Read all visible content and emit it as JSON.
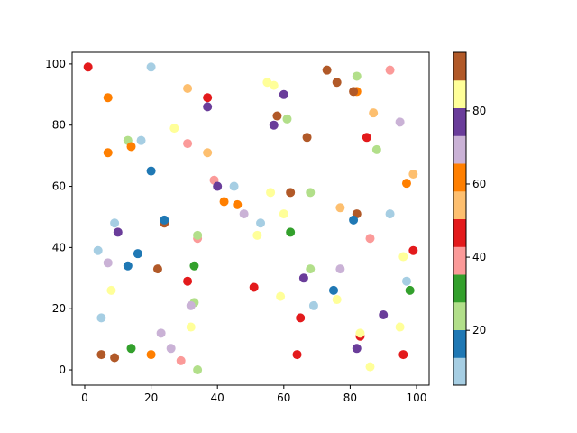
{
  "chart_data": {
    "type": "scatter",
    "title": "",
    "xlabel": "",
    "ylabel": "",
    "xlim": [
      -3.8,
      103.8
    ],
    "ylim": [
      -5,
      103.8
    ],
    "xticks": [
      "0",
      "20",
      "40",
      "60",
      "80",
      "100"
    ],
    "yticks": [
      "0",
      "20",
      "40",
      "60",
      "80",
      "100"
    ],
    "grid": false,
    "colormap": "Paired",
    "colormap_colors": [
      "#a6cee3",
      "#1f78b4",
      "#b2df8a",
      "#33a02c",
      "#fb9a99",
      "#e31a1c",
      "#fdbf6f",
      "#ff7f00",
      "#cab2d6",
      "#6a3d9a",
      "#ffff99",
      "#b15928"
    ],
    "colorbar": {
      "clim": [
        5,
        96
      ],
      "ticks": [
        "20",
        "40",
        "60",
        "80"
      ]
    },
    "points_xyc": [
      [
        1,
        99,
        47
      ],
      [
        20,
        99,
        9
      ],
      [
        31,
        92,
        55
      ],
      [
        37,
        89,
        47
      ],
      [
        7,
        89,
        63
      ],
      [
        37,
        86,
        78
      ],
      [
        27,
        79,
        86
      ],
      [
        13,
        75,
        24
      ],
      [
        17,
        75,
        9
      ],
      [
        14,
        73,
        63
      ],
      [
        31,
        74,
        40
      ],
      [
        7,
        71,
        63
      ],
      [
        37,
        71,
        55
      ],
      [
        20,
        65,
        17
      ],
      [
        39,
        62,
        40
      ],
      [
        40,
        60,
        78
      ],
      [
        45,
        60,
        9
      ],
      [
        42,
        55,
        63
      ],
      [
        46,
        54,
        63
      ],
      [
        48,
        51,
        70
      ],
      [
        9,
        48,
        9
      ],
      [
        24,
        48,
        93
      ],
      [
        24,
        49,
        17
      ],
      [
        4,
        39,
        9
      ],
      [
        10,
        45,
        78
      ],
      [
        16,
        38,
        17
      ],
      [
        7,
        35,
        70
      ],
      [
        13,
        34,
        17
      ],
      [
        22,
        33,
        93
      ],
      [
        33,
        34,
        32
      ],
      [
        34,
        43,
        40
      ],
      [
        34,
        44,
        24
      ],
      [
        31,
        29,
        47
      ],
      [
        8,
        26,
        86
      ],
      [
        33,
        22,
        24
      ],
      [
        32,
        21,
        70
      ],
      [
        32,
        14,
        86
      ],
      [
        5,
        17,
        9
      ],
      [
        23,
        12,
        70
      ],
      [
        26,
        7,
        70
      ],
      [
        14,
        7,
        32
      ],
      [
        5,
        5,
        93
      ],
      [
        9,
        4,
        93
      ],
      [
        20,
        5,
        63
      ],
      [
        29,
        3,
        40
      ],
      [
        34,
        0,
        24
      ],
      [
        55,
        94,
        86
      ],
      [
        57,
        93,
        86
      ],
      [
        60,
        90,
        78
      ],
      [
        73,
        98,
        93
      ],
      [
        76,
        94,
        93
      ],
      [
        82,
        96,
        24
      ],
      [
        92,
        98,
        40
      ],
      [
        82,
        91,
        63
      ],
      [
        81,
        91,
        93
      ],
      [
        58,
        83,
        93
      ],
      [
        61,
        82,
        24
      ],
      [
        57,
        80,
        78
      ],
      [
        87,
        84,
        55
      ],
      [
        95,
        81,
        70
      ],
      [
        67,
        76,
        93
      ],
      [
        85,
        76,
        47
      ],
      [
        88,
        72,
        24
      ],
      [
        99,
        64,
        55
      ],
      [
        97,
        61,
        63
      ],
      [
        56,
        58,
        86
      ],
      [
        62,
        58,
        93
      ],
      [
        68,
        58,
        24
      ],
      [
        77,
        53,
        55
      ],
      [
        60,
        51,
        86
      ],
      [
        82,
        51,
        93
      ],
      [
        92,
        51,
        9
      ],
      [
        81,
        49,
        17
      ],
      [
        53,
        48,
        9
      ],
      [
        52,
        44,
        86
      ],
      [
        62,
        45,
        32
      ],
      [
        86,
        43,
        40
      ],
      [
        99,
        39,
        47
      ],
      [
        96,
        37,
        86
      ],
      [
        68,
        33,
        24
      ],
      [
        77,
        33,
        70
      ],
      [
        66,
        30,
        78
      ],
      [
        51,
        27,
        47
      ],
      [
        97,
        29,
        9
      ],
      [
        98,
        26,
        32
      ],
      [
        75,
        26,
        17
      ],
      [
        59,
        24,
        86
      ],
      [
        76,
        23,
        86
      ],
      [
        69,
        21,
        9
      ],
      [
        65,
        17,
        47
      ],
      [
        90,
        18,
        78
      ],
      [
        95,
        14,
        86
      ],
      [
        83,
        11,
        47
      ],
      [
        83,
        12,
        86
      ],
      [
        64,
        5,
        47
      ],
      [
        82,
        7,
        78
      ],
      [
        96,
        5,
        47
      ],
      [
        86,
        1,
        86
      ]
    ]
  }
}
